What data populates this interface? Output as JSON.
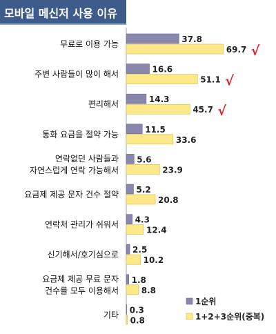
{
  "chart_data": {
    "type": "bar",
    "orientation": "horizontal",
    "title": "모바일 메신저 사용 이유",
    "categories": [
      [
        "무료로 이용 가능"
      ],
      [
        "주변 사람들이 많이 해서"
      ],
      [
        "편리해서"
      ],
      [
        "통화 요금을 절약 가능"
      ],
      [
        "연락없던 사람들과",
        "자연스럽게 연락 가능해서"
      ],
      [
        "요금제 제공 문자 건수 절약"
      ],
      [
        "연락처 관리가 쉬워서"
      ],
      [
        "신기해서/호기심으로"
      ],
      [
        "요금제 제공 무료 문자",
        "건수를 모두 이용해서"
      ],
      [
        "기타"
      ]
    ],
    "series": [
      {
        "name": "1순위",
        "values": [
          37.8,
          16.6,
          14.3,
          11.5,
          5.6,
          5.2,
          4.3,
          2.5,
          1.8,
          0.3
        ],
        "color": "#8a87ac"
      },
      {
        "name": "1+2+3순위(중복)",
        "values": [
          69.7,
          51.1,
          45.7,
          33.6,
          23.9,
          20.8,
          12.4,
          10.2,
          8.8,
          0.8
        ],
        "color": "#fde88a"
      }
    ],
    "checkmarks": [
      0,
      1,
      2
    ],
    "checkmark_glyph": "√",
    "checkmark_color": "#e02020",
    "axis_color": "#9aa3c4",
    "legend_position": "bottom-right",
    "grid": false
  }
}
